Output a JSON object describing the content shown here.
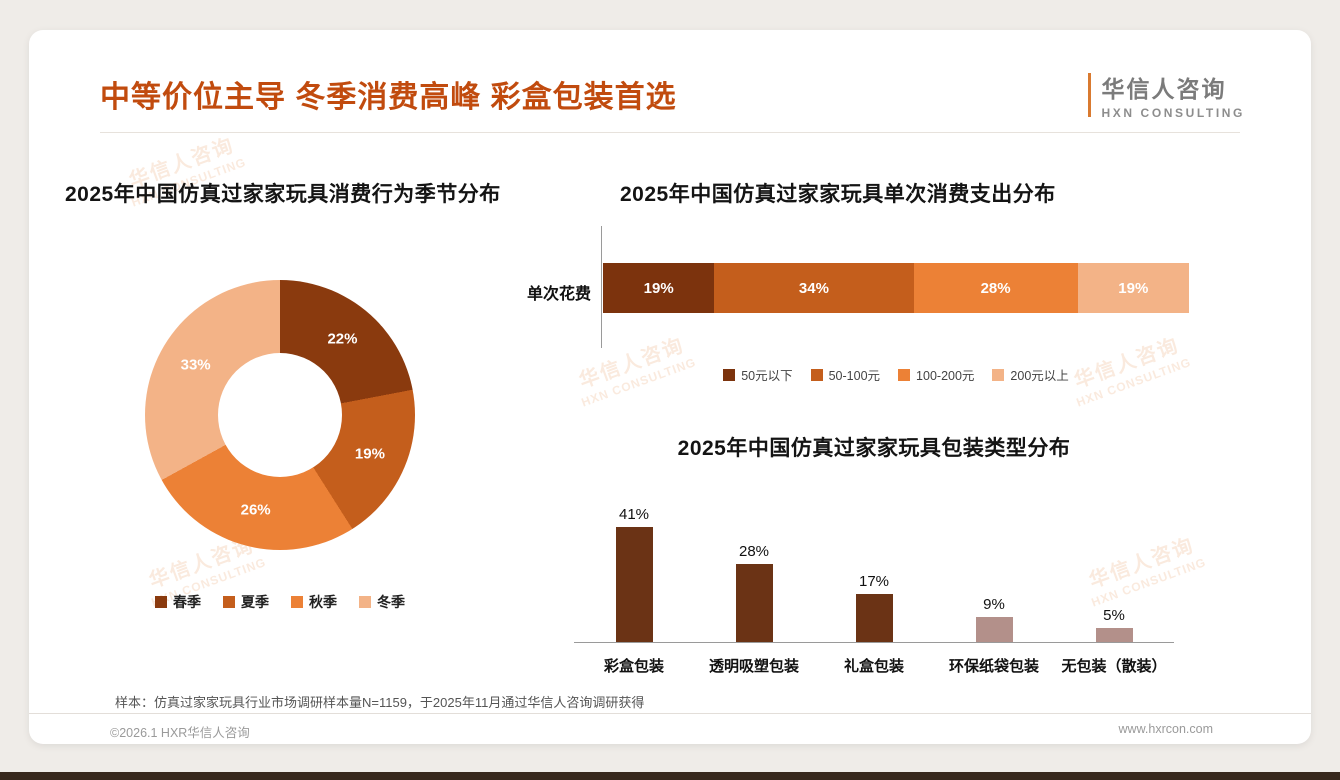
{
  "page": {
    "title": "中等价位主导 冬季消费高峰 彩盒包装首选",
    "logo": {
      "name": "华信人咨询",
      "sub": "HXN CONSULTING"
    },
    "watermark_name": "华信人咨询",
    "watermark_sub": "HXN CONSULTING",
    "sample_note": "样本：仿真过家家玩具行业市场调研样本量N=1159，于2025年11月通过华信人咨询调研获得",
    "copyright": "©2026.1 HXR华信人咨询",
    "website": "www.hxrcon.com"
  },
  "colors": {
    "title_accent": "#c14b0e",
    "dark_brown": "#8a3a0e",
    "mid_brown": "#c45e1c",
    "orange": "#ec8136",
    "peach": "#f3b387",
    "bar_dark": "#6b3315",
    "bar_rosy": "#b3908a",
    "bottom_bar": "#37281d"
  },
  "chart_data": [
    {
      "type": "pie",
      "donut": true,
      "title": "2025年中国仿真过家家玩具消费行为季节分布",
      "categories": [
        "春季",
        "夏季",
        "秋季",
        "冬季"
      ],
      "values": [
        22,
        19,
        26,
        33
      ],
      "colors": [
        "#8a3a0e",
        "#c45e1c",
        "#ec8136",
        "#f3b387"
      ],
      "legend_position": "bottom",
      "value_labels": [
        "22%",
        "19%",
        "26%",
        "33%"
      ]
    },
    {
      "type": "bar",
      "orientation": "horizontal-stacked",
      "title": "2025年中国仿真过家家玩具单次消费支出分布",
      "row_label": "单次花费",
      "categories": [
        "50元以下",
        "50-100元",
        "100-200元",
        "200元以上"
      ],
      "values": [
        19,
        34,
        28,
        19
      ],
      "colors": [
        "#7c330d",
        "#c45e1c",
        "#ec8136",
        "#f3b387"
      ],
      "legend_position": "bottom",
      "xlim": [
        0,
        100
      ]
    },
    {
      "type": "bar",
      "orientation": "vertical",
      "title": "2025年中国仿真过家家玩具包装类型分布",
      "categories": [
        "彩盒包装",
        "透明吸塑包装",
        "礼盒包装",
        "环保纸袋包装",
        "无包装（散装）"
      ],
      "values": [
        41,
        28,
        17,
        9,
        5
      ],
      "colors": [
        "#6b3315",
        "#6b3315",
        "#6b3315",
        "#b3908a",
        "#b3908a"
      ],
      "ylim": [
        0,
        45
      ],
      "grid": false
    }
  ]
}
